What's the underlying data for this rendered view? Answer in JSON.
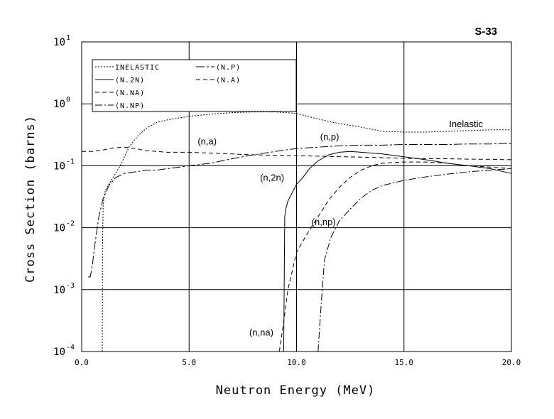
{
  "chart_data": {
    "type": "line",
    "title": "S-33",
    "xlabel": "Neutron Energy (MeV)",
    "ylabel": "Cross Section (barns)",
    "xlim": [
      0,
      20
    ],
    "ylim": [
      0.0001,
      10
    ],
    "yscale": "log",
    "grid": true,
    "legend_position": "top-left",
    "x_ticks": [
      0,
      5,
      10,
      15,
      20
    ],
    "x_tick_labels": [
      "0.0",
      "5.0",
      "10.0",
      "15.0",
      "20.0"
    ],
    "y_tick_exponents": [
      1,
      0,
      -1,
      -2,
      -3,
      -4
    ],
    "y_tick_base": "10",
    "legend": [
      {
        "label": "INELASTIC",
        "dash": "2,2"
      },
      {
        "label": "(N.2N)",
        "dash": ""
      },
      {
        "label": "(N.NA)",
        "dash": "6,4"
      },
      {
        "label": "(N.NP)",
        "dash": "10,3,2,3"
      },
      {
        "label": "(N.P)",
        "dash": "12,3,3,3"
      },
      {
        "label": "(N.A)",
        "dash": "6,4"
      }
    ],
    "series": [
      {
        "key": "inelastic",
        "dash": "2,2",
        "x": [
          0.96,
          0.97,
          1.0,
          1.1,
          1.4,
          1.8,
          2.2,
          2.6,
          3.0,
          3.5,
          4.0,
          5.0,
          6.0,
          7.0,
          8.0,
          9.0,
          10.0,
          10.5,
          11.0,
          11.5,
          12.0,
          12.5,
          13.0,
          13.5,
          14.0,
          15.0,
          16.0,
          17.0,
          18.0,
          19.0,
          20.0
        ],
        "y": [
          0.0001,
          0.005,
          0.025,
          0.04,
          0.06,
          0.1,
          0.2,
          0.3,
          0.4,
          0.5,
          0.55,
          0.63,
          0.68,
          0.72,
          0.74,
          0.74,
          0.7,
          0.63,
          0.57,
          0.52,
          0.48,
          0.45,
          0.42,
          0.39,
          0.36,
          0.35,
          0.35,
          0.36,
          0.37,
          0.38,
          0.38
        ]
      },
      {
        "key": "n2n",
        "dash": "",
        "x": [
          9.4,
          9.45,
          9.5,
          9.6,
          9.8,
          10.0,
          10.3,
          10.6,
          11.0,
          11.5,
          12.0,
          12.5,
          13.0,
          14.0,
          15.0,
          16.0,
          17.0,
          18.0,
          19.0,
          20.0
        ],
        "y": [
          0.0001,
          0.015,
          0.02,
          0.027,
          0.037,
          0.05,
          0.065,
          0.09,
          0.12,
          0.15,
          0.165,
          0.17,
          0.165,
          0.155,
          0.14,
          0.125,
          0.11,
          0.1,
          0.09,
          0.075
        ]
      },
      {
        "key": "nna",
        "dash": "6,4",
        "x": [
          9.2,
          9.4,
          9.6,
          9.8,
          10.0,
          10.5,
          11.0,
          11.5,
          12.0,
          12.5,
          13.0,
          13.5,
          14.0,
          15.0,
          16.0,
          17.0,
          18.0,
          19.0,
          20.0
        ],
        "y": [
          0.0001,
          0.0003,
          0.001,
          0.002,
          0.004,
          0.008,
          0.015,
          0.028,
          0.045,
          0.065,
          0.085,
          0.1,
          0.11,
          0.115,
          0.115,
          0.11,
          0.1,
          0.095,
          0.09
        ]
      },
      {
        "key": "nnp",
        "dash": "10,3,2,3",
        "x": [
          11.0,
          11.15,
          11.3,
          11.6,
          12.0,
          12.5,
          13.0,
          13.5,
          14.0,
          15.0,
          16.0,
          17.0,
          18.0,
          19.0,
          20.0
        ],
        "y": [
          0.0001,
          0.0006,
          0.003,
          0.007,
          0.013,
          0.02,
          0.03,
          0.04,
          0.048,
          0.058,
          0.066,
          0.073,
          0.08,
          0.085,
          0.09
        ]
      },
      {
        "key": "np",
        "dash": "12,3,3,3",
        "x": [
          0.3,
          0.3,
          0.4,
          0.5,
          0.6,
          0.8,
          1.0,
          1.3,
          1.6,
          2.0,
          2.5,
          3.0,
          3.5,
          4.0,
          5.0,
          6.0,
          7.0,
          8.0,
          9.0,
          10.0,
          11.0,
          12.0,
          13.0,
          14.0,
          15.0,
          16.0,
          17.0,
          18.0,
          19.0,
          20.0
        ],
        "y": [
          0.0016,
          0.0016,
          0.0016,
          0.0025,
          0.005,
          0.015,
          0.03,
          0.05,
          0.065,
          0.075,
          0.08,
          0.085,
          0.085,
          0.09,
          0.1,
          0.11,
          0.13,
          0.15,
          0.17,
          0.19,
          0.2,
          0.21,
          0.215,
          0.215,
          0.22,
          0.22,
          0.22,
          0.225,
          0.225,
          0.23
        ]
      },
      {
        "key": "na",
        "dash": "6,4",
        "x": [
          0.0,
          0.5,
          1.0,
          1.5,
          2.0,
          2.5,
          3.0,
          4.0,
          5.0,
          6.0,
          7.0,
          8.0,
          9.0,
          10.0,
          11.0,
          12.0,
          13.0,
          14.0,
          15.0,
          16.0,
          17.0,
          18.0,
          19.0,
          20.0
        ],
        "y": [
          0.17,
          0.17,
          0.18,
          0.195,
          0.2,
          0.19,
          0.175,
          0.165,
          0.165,
          0.16,
          0.155,
          0.15,
          0.148,
          0.145,
          0.143,
          0.14,
          0.138,
          0.135,
          0.132,
          0.13,
          0.13,
          0.128,
          0.127,
          0.125
        ]
      }
    ],
    "annotations": [
      {
        "text": "Inelastic",
        "x": 17.1,
        "y": 0.42
      },
      {
        "text": "(n,a)",
        "x": 5.4,
        "y": 0.22
      },
      {
        "text": "(n,p)",
        "x": 11.1,
        "y": 0.26
      },
      {
        "text": "(n,2n)",
        "x": 8.3,
        "y": 0.057
      },
      {
        "text": "(n,np)",
        "x": 10.7,
        "y": 0.011
      },
      {
        "text": "(n,na)",
        "x": 7.8,
        "y": 0.00018
      }
    ]
  }
}
